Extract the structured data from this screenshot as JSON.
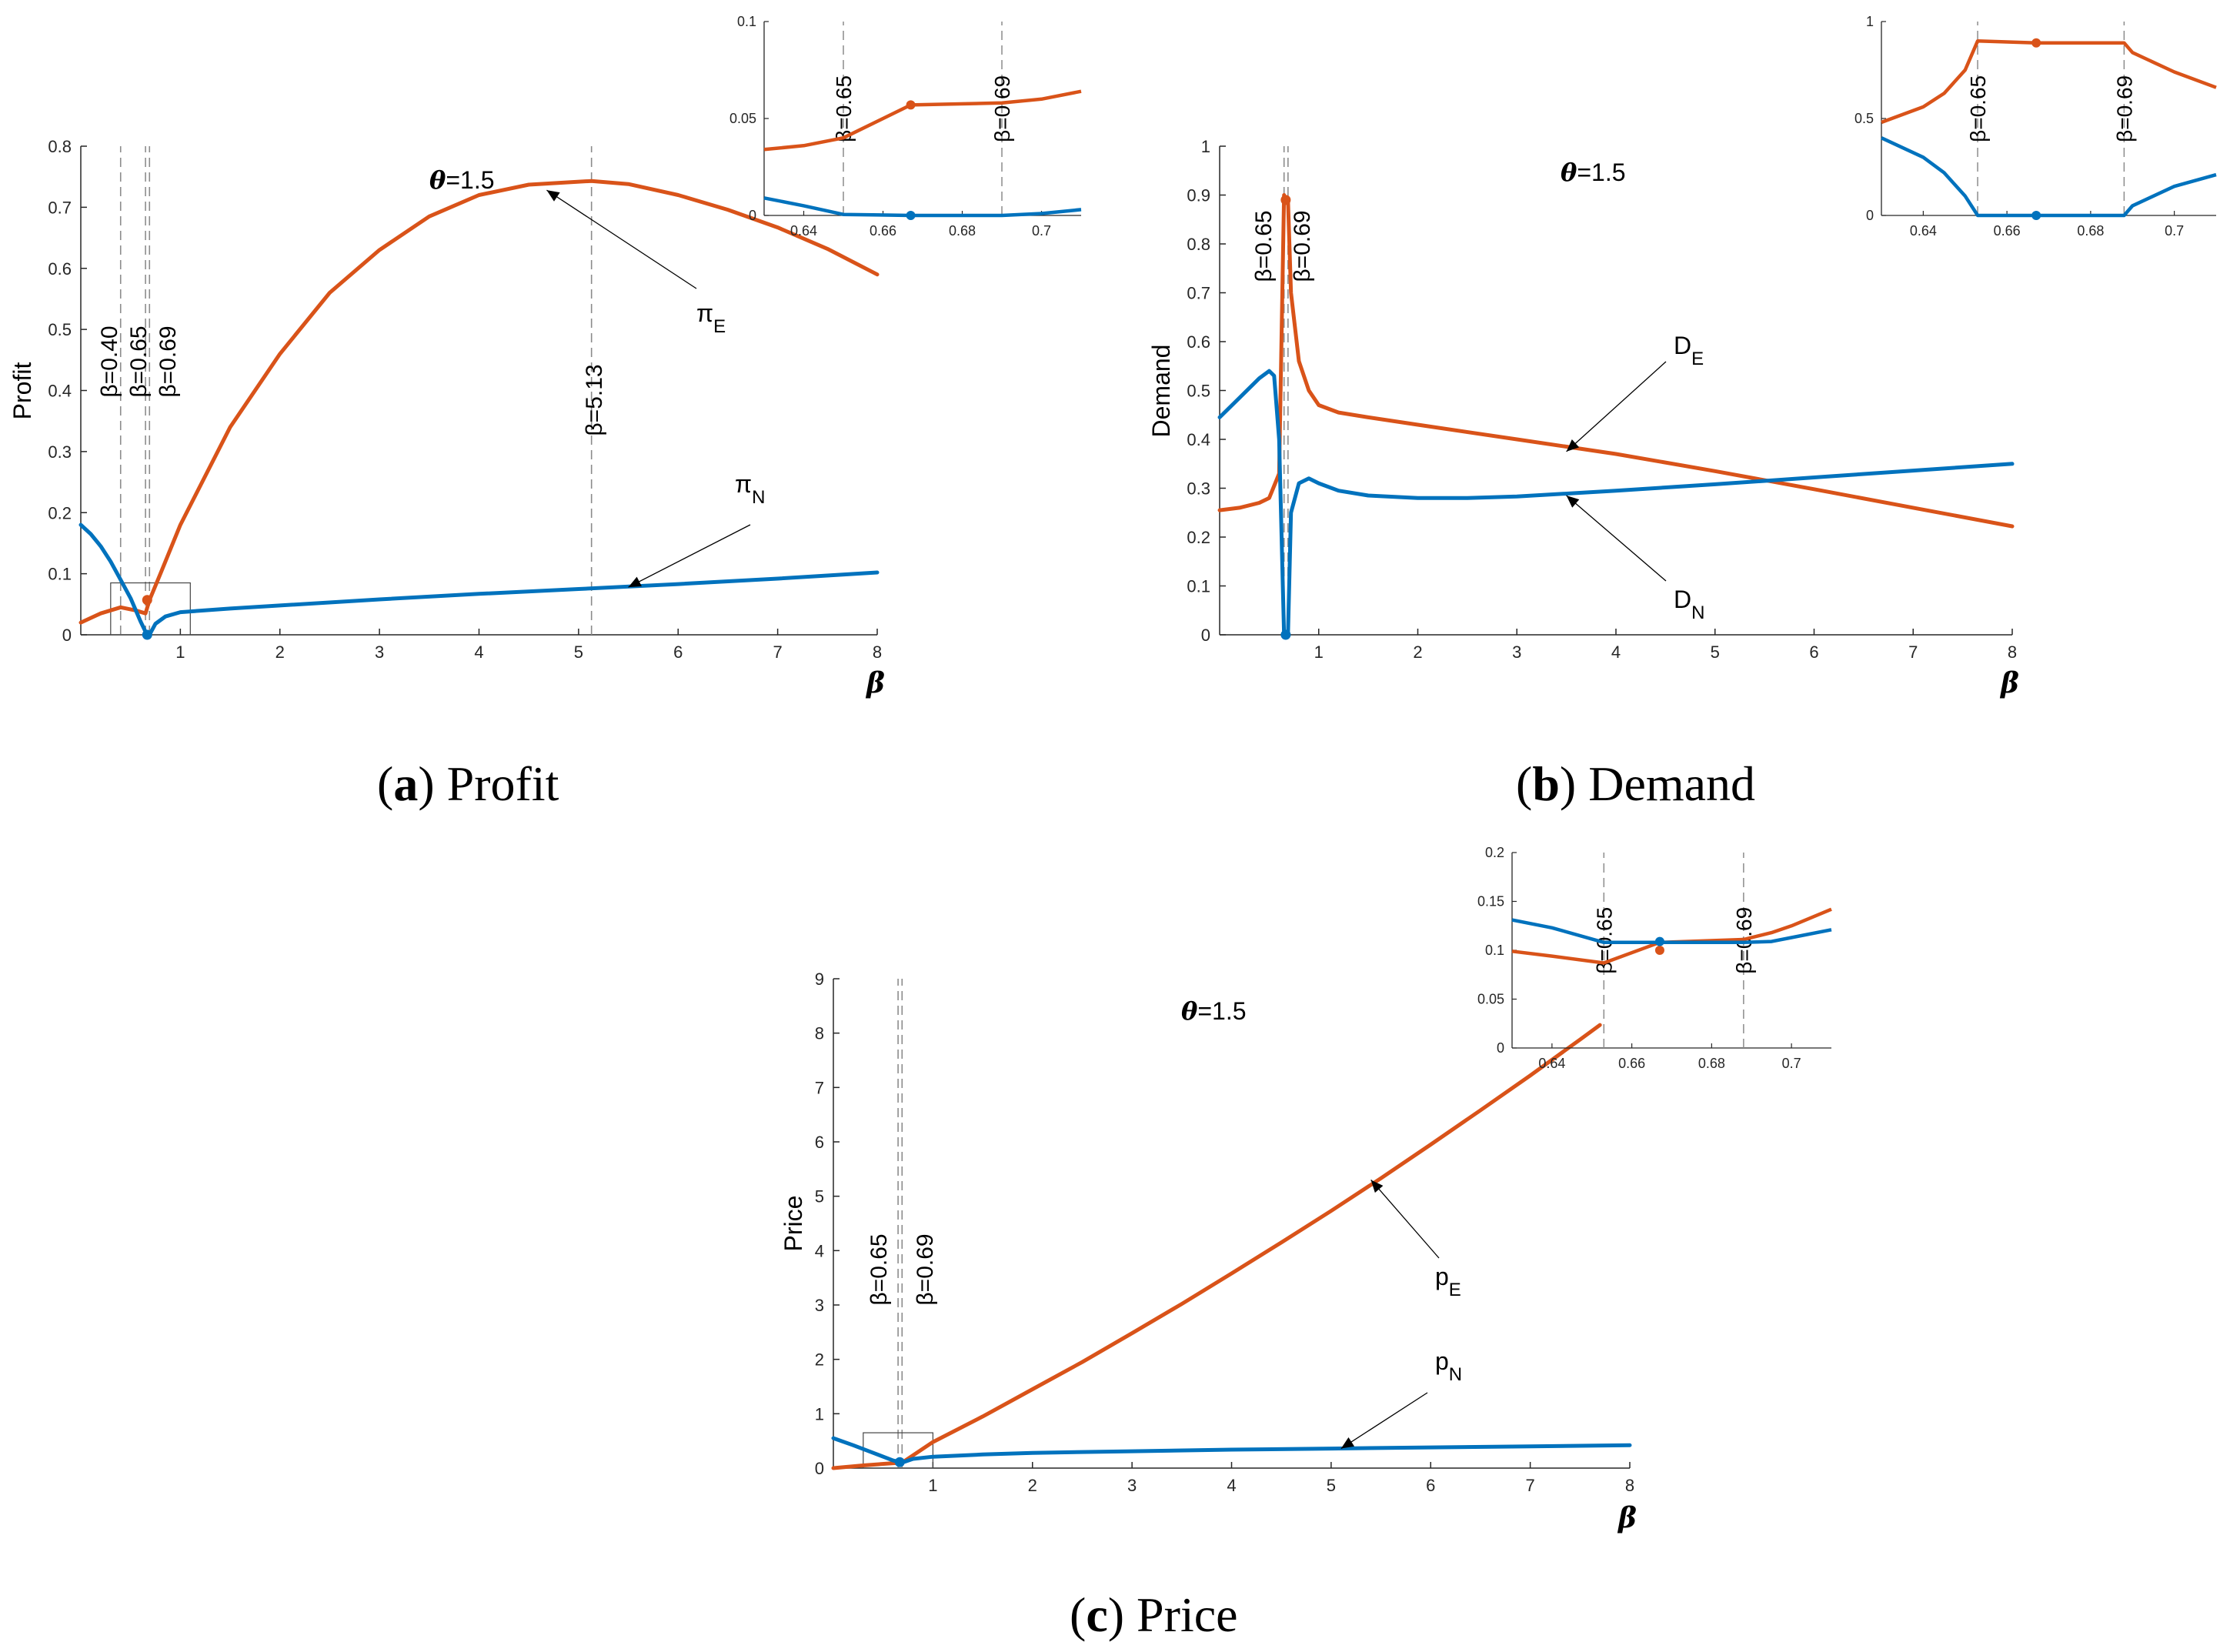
{
  "colors": {
    "E": "#D95319",
    "N": "#0072BD",
    "vline": "#8c8c8c"
  },
  "chart_data": [
    {
      "id": "profit",
      "type": "line",
      "caption_letter": "(a)",
      "caption_text": "Profit",
      "ylabel": "Profit",
      "xlabel": "β",
      "xlim": [
        0,
        8
      ],
      "ylim": [
        0,
        0.8
      ],
      "xticks": [
        1,
        2,
        3,
        4,
        5,
        6,
        7,
        8
      ],
      "yticks": [
        0,
        0.1,
        0.2,
        0.3,
        0.4,
        0.5,
        0.6,
        0.7,
        0.8
      ],
      "param_text": "=1.5",
      "param_symbol": "θ",
      "vlines": [
        {
          "x": 0.4,
          "label": "β=0.40"
        },
        {
          "x": 0.65,
          "label": "β=0.65"
        },
        {
          "x": 0.69,
          "label": "β=0.69"
        },
        {
          "x": 5.13,
          "label": "β=5.13"
        }
      ],
      "series": [
        {
          "name": "πE",
          "symbol": "π",
          "sub": "E",
          "key": "E",
          "x": [
            0,
            0.2,
            0.4,
            0.55,
            0.65,
            0.69,
            0.8,
            1.0,
            1.5,
            2.0,
            2.5,
            3.0,
            3.5,
            4.0,
            4.5,
            5.13,
            5.5,
            6.0,
            6.5,
            7.0,
            7.5,
            8.0
          ],
          "y": [
            0.02,
            0.035,
            0.045,
            0.04,
            0.035,
            0.057,
            0.1,
            0.18,
            0.34,
            0.46,
            0.56,
            0.63,
            0.685,
            0.72,
            0.737,
            0.743,
            0.738,
            0.72,
            0.696,
            0.667,
            0.632,
            0.59
          ]
        },
        {
          "name": "πN",
          "symbol": "π",
          "sub": "N",
          "key": "N",
          "x": [
            0,
            0.1,
            0.2,
            0.3,
            0.4,
            0.5,
            0.6,
            0.65,
            0.69,
            0.75,
            0.85,
            1.0,
            1.5,
            2,
            3,
            4,
            5,
            6,
            7,
            8
          ],
          "y": [
            0.18,
            0.165,
            0.145,
            0.12,
            0.09,
            0.06,
            0.022,
            0.005,
            0.0,
            0.018,
            0.03,
            0.037,
            0.043,
            0.048,
            0.058,
            0.067,
            0.075,
            0.083,
            0.092,
            0.102
          ]
        }
      ],
      "points": [
        {
          "x": 0.667,
          "y": 0.057,
          "key": "E"
        },
        {
          "x": 0.667,
          "y": 0.0,
          "key": "N"
        }
      ],
      "annotations": [
        {
          "series": "πE",
          "symbol": "π",
          "sub": "E"
        },
        {
          "series": "πN",
          "symbol": "π",
          "sub": "N"
        }
      ],
      "zoom_box": {
        "x": [
          0.3,
          1.1
        ],
        "y": [
          0,
          0.085
        ]
      },
      "inset": {
        "xlim": [
          0.63,
          0.71
        ],
        "ylim": [
          0,
          0.1
        ],
        "xticks": [
          0.64,
          0.66,
          0.68,
          0.7
        ],
        "yticks": [
          0,
          0.05,
          0.1
        ],
        "vlines": [
          {
            "x": 0.65,
            "label": "β=0.65"
          },
          {
            "x": 0.69,
            "label": "β=0.69"
          }
        ],
        "series": [
          {
            "key": "E",
            "x": [
              0.63,
              0.64,
              0.65,
              0.667,
              0.69,
              0.7,
              0.71
            ],
            "y": [
              0.034,
              0.036,
              0.04,
              0.057,
              0.058,
              0.06,
              0.064
            ]
          },
          {
            "key": "N",
            "x": [
              0.63,
              0.64,
              0.65,
              0.667,
              0.69,
              0.7,
              0.71
            ],
            "y": [
              0.009,
              0.005,
              0.0005,
              0.0,
              0.0,
              0.001,
              0.003
            ]
          }
        ],
        "points": [
          {
            "x": 0.667,
            "y": 0.057,
            "key": "E"
          },
          {
            "x": 0.667,
            "y": 0.0,
            "key": "N"
          }
        ]
      }
    },
    {
      "id": "demand",
      "type": "line",
      "caption_letter": "(b)",
      "caption_text": "Demand",
      "ylabel": "Demand",
      "xlabel": "β",
      "xlim": [
        0,
        8
      ],
      "ylim": [
        0,
        1
      ],
      "xticks": [
        1,
        2,
        3,
        4,
        5,
        6,
        7,
        8
      ],
      "yticks": [
        0,
        0.1,
        0.2,
        0.3,
        0.4,
        0.5,
        0.6,
        0.7,
        0.8,
        0.9,
        1
      ],
      "param_text": "=1.5",
      "param_symbol": "θ",
      "vlines": [
        {
          "x": 0.65,
          "label": "β=0.65"
        },
        {
          "x": 0.69,
          "label": "β=0.69"
        }
      ],
      "series": [
        {
          "name": "DE",
          "symbol": "D",
          "sub": "E",
          "key": "E",
          "x": [
            0,
            0.2,
            0.4,
            0.5,
            0.6,
            0.65,
            0.667,
            0.69,
            0.72,
            0.8,
            0.9,
            1.0,
            1.2,
            1.5,
            2,
            3,
            4,
            5,
            6,
            7,
            8
          ],
          "y": [
            0.255,
            0.26,
            0.27,
            0.28,
            0.33,
            0.9,
            0.89,
            0.89,
            0.7,
            0.56,
            0.5,
            0.47,
            0.455,
            0.445,
            0.43,
            0.4,
            0.37,
            0.335,
            0.298,
            0.26,
            0.222
          ]
        },
        {
          "name": "DN",
          "symbol": "D",
          "sub": "N",
          "key": "N",
          "x": [
            0,
            0.2,
            0.4,
            0.5,
            0.55,
            0.6,
            0.65,
            0.667,
            0.69,
            0.72,
            0.8,
            0.9,
            1.0,
            1.2,
            1.5,
            2,
            2.5,
            3,
            4,
            5,
            6,
            7,
            8
          ],
          "y": [
            0.445,
            0.485,
            0.525,
            0.54,
            0.53,
            0.4,
            0.0,
            0.0,
            0.0,
            0.25,
            0.31,
            0.32,
            0.31,
            0.295,
            0.285,
            0.28,
            0.28,
            0.283,
            0.295,
            0.308,
            0.322,
            0.336,
            0.35
          ]
        }
      ],
      "points": [
        {
          "x": 0.667,
          "y": 0.89,
          "key": "E"
        },
        {
          "x": 0.667,
          "y": 0.0,
          "key": "N"
        }
      ],
      "annotations": [
        {
          "series": "DE",
          "symbol": "D",
          "sub": "E"
        },
        {
          "series": "DN",
          "symbol": "D",
          "sub": "N"
        }
      ],
      "inset": {
        "xlim": [
          0.63,
          0.71
        ],
        "ylim": [
          0,
          1
        ],
        "xticks": [
          0.64,
          0.66,
          0.68,
          0.7
        ],
        "yticks": [
          0,
          0.5,
          1
        ],
        "vlines": [
          {
            "x": 0.653,
            "label": "β=0.65"
          },
          {
            "x": 0.688,
            "label": "β=0.69"
          }
        ],
        "series": [
          {
            "key": "E",
            "x": [
              0.63,
              0.64,
              0.645,
              0.65,
              0.653,
              0.667,
              0.688,
              0.69,
              0.7,
              0.71
            ],
            "y": [
              0.48,
              0.56,
              0.63,
              0.75,
              0.9,
              0.89,
              0.89,
              0.84,
              0.74,
              0.66
            ]
          },
          {
            "key": "N",
            "x": [
              0.63,
              0.64,
              0.645,
              0.65,
              0.653,
              0.667,
              0.688,
              0.69,
              0.7,
              0.71
            ],
            "y": [
              0.4,
              0.3,
              0.22,
              0.1,
              0.0,
              0.0,
              0.0,
              0.05,
              0.15,
              0.21
            ]
          }
        ],
        "points": [
          {
            "x": 0.667,
            "y": 0.89,
            "key": "E"
          },
          {
            "x": 0.667,
            "y": 0.0,
            "key": "N"
          }
        ]
      }
    },
    {
      "id": "price",
      "type": "line",
      "caption_letter": "(c)",
      "caption_text": "Price",
      "ylabel": "Price",
      "xlabel": "β",
      "xlim": [
        0,
        8
      ],
      "ylim": [
        0,
        9
      ],
      "xticks": [
        1,
        2,
        3,
        4,
        5,
        6,
        7,
        8
      ],
      "yticks": [
        0,
        1,
        2,
        3,
        4,
        5,
        6,
        7,
        8,
        9
      ],
      "param_text": "=1.5",
      "param_symbol": "θ",
      "vlines": [
        {
          "x": 0.65,
          "label": "β=0.65"
        },
        {
          "x": 0.69,
          "label": "β=0.69"
        }
      ],
      "series": [
        {
          "name": "pE",
          "symbol": "p",
          "sub": "E",
          "key": "E",
          "x": [
            0,
            0.3,
            0.6,
            0.69,
            1.0,
            1.5,
            2,
            2.5,
            3,
            3.5,
            4,
            4.5,
            5,
            5.5,
            6,
            6.5,
            7,
            7.5,
            7.7
          ],
          "y": [
            0.0,
            0.05,
            0.09,
            0.1,
            0.48,
            0.95,
            1.45,
            1.95,
            2.48,
            3.02,
            3.58,
            4.15,
            4.73,
            5.33,
            5.95,
            6.58,
            7.22,
            7.88,
            8.15
          ]
        },
        {
          "name": "pN",
          "symbol": "p",
          "sub": "N",
          "key": "N",
          "x": [
            0,
            0.2,
            0.4,
            0.6,
            0.69,
            0.8,
            1.0,
            1.5,
            2,
            3,
            4,
            5,
            6,
            7,
            8
          ],
          "y": [
            0.55,
            0.42,
            0.28,
            0.14,
            0.1,
            0.17,
            0.21,
            0.25,
            0.28,
            0.31,
            0.34,
            0.36,
            0.38,
            0.4,
            0.42
          ]
        }
      ],
      "points": [
        {
          "x": 0.667,
          "y": 0.11,
          "key": "N"
        }
      ],
      "annotations": [
        {
          "series": "pE",
          "symbol": "p",
          "sub": "E"
        },
        {
          "series": "pN",
          "symbol": "p",
          "sub": "N"
        }
      ],
      "zoom_box": {
        "x": [
          0.3,
          1.0
        ],
        "y": [
          0,
          0.65
        ]
      },
      "inset": {
        "xlim": [
          0.63,
          0.71
        ],
        "ylim": [
          0,
          0.2
        ],
        "xticks": [
          0.64,
          0.66,
          0.68,
          0.7
        ],
        "yticks": [
          0,
          0.05,
          0.1,
          0.15,
          0.2
        ],
        "vlines": [
          {
            "x": 0.653,
            "label": "β=0.65"
          },
          {
            "x": 0.688,
            "label": "β=0.69"
          }
        ],
        "series": [
          {
            "key": "E",
            "x": [
              0.63,
              0.64,
              0.653,
              0.667,
              0.688,
              0.695,
              0.7,
              0.71
            ],
            "y": [
              0.099,
              0.094,
              0.087,
              0.108,
              0.111,
              0.118,
              0.125,
              0.142
            ]
          },
          {
            "key": "N",
            "x": [
              0.63,
              0.64,
              0.653,
              0.667,
              0.688,
              0.695,
              0.7,
              0.71
            ],
            "y": [
              0.131,
              0.123,
              0.108,
              0.108,
              0.108,
              0.109,
              0.113,
              0.121
            ]
          }
        ],
        "points": [
          {
            "x": 0.667,
            "y": 0.1,
            "key": "E"
          },
          {
            "x": 0.667,
            "y": 0.109,
            "key": "N"
          }
        ]
      }
    }
  ]
}
